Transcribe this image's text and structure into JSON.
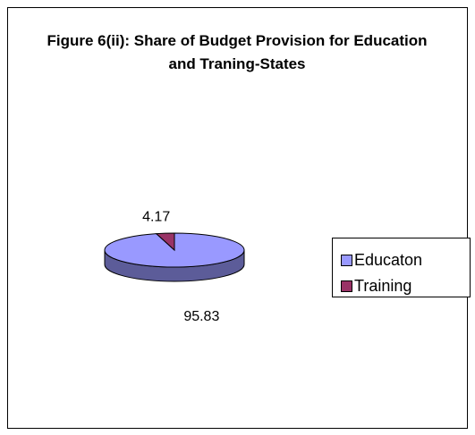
{
  "chart_data": {
    "type": "pie",
    "title": "Figure 6(ii): Share of Budget Provision for Education and Traning-States",
    "categories": [
      "Educaton",
      "Training"
    ],
    "values": [
      95.83,
      4.17
    ],
    "colors": [
      "#9999ff",
      "#993366"
    ],
    "legend": "right"
  }
}
